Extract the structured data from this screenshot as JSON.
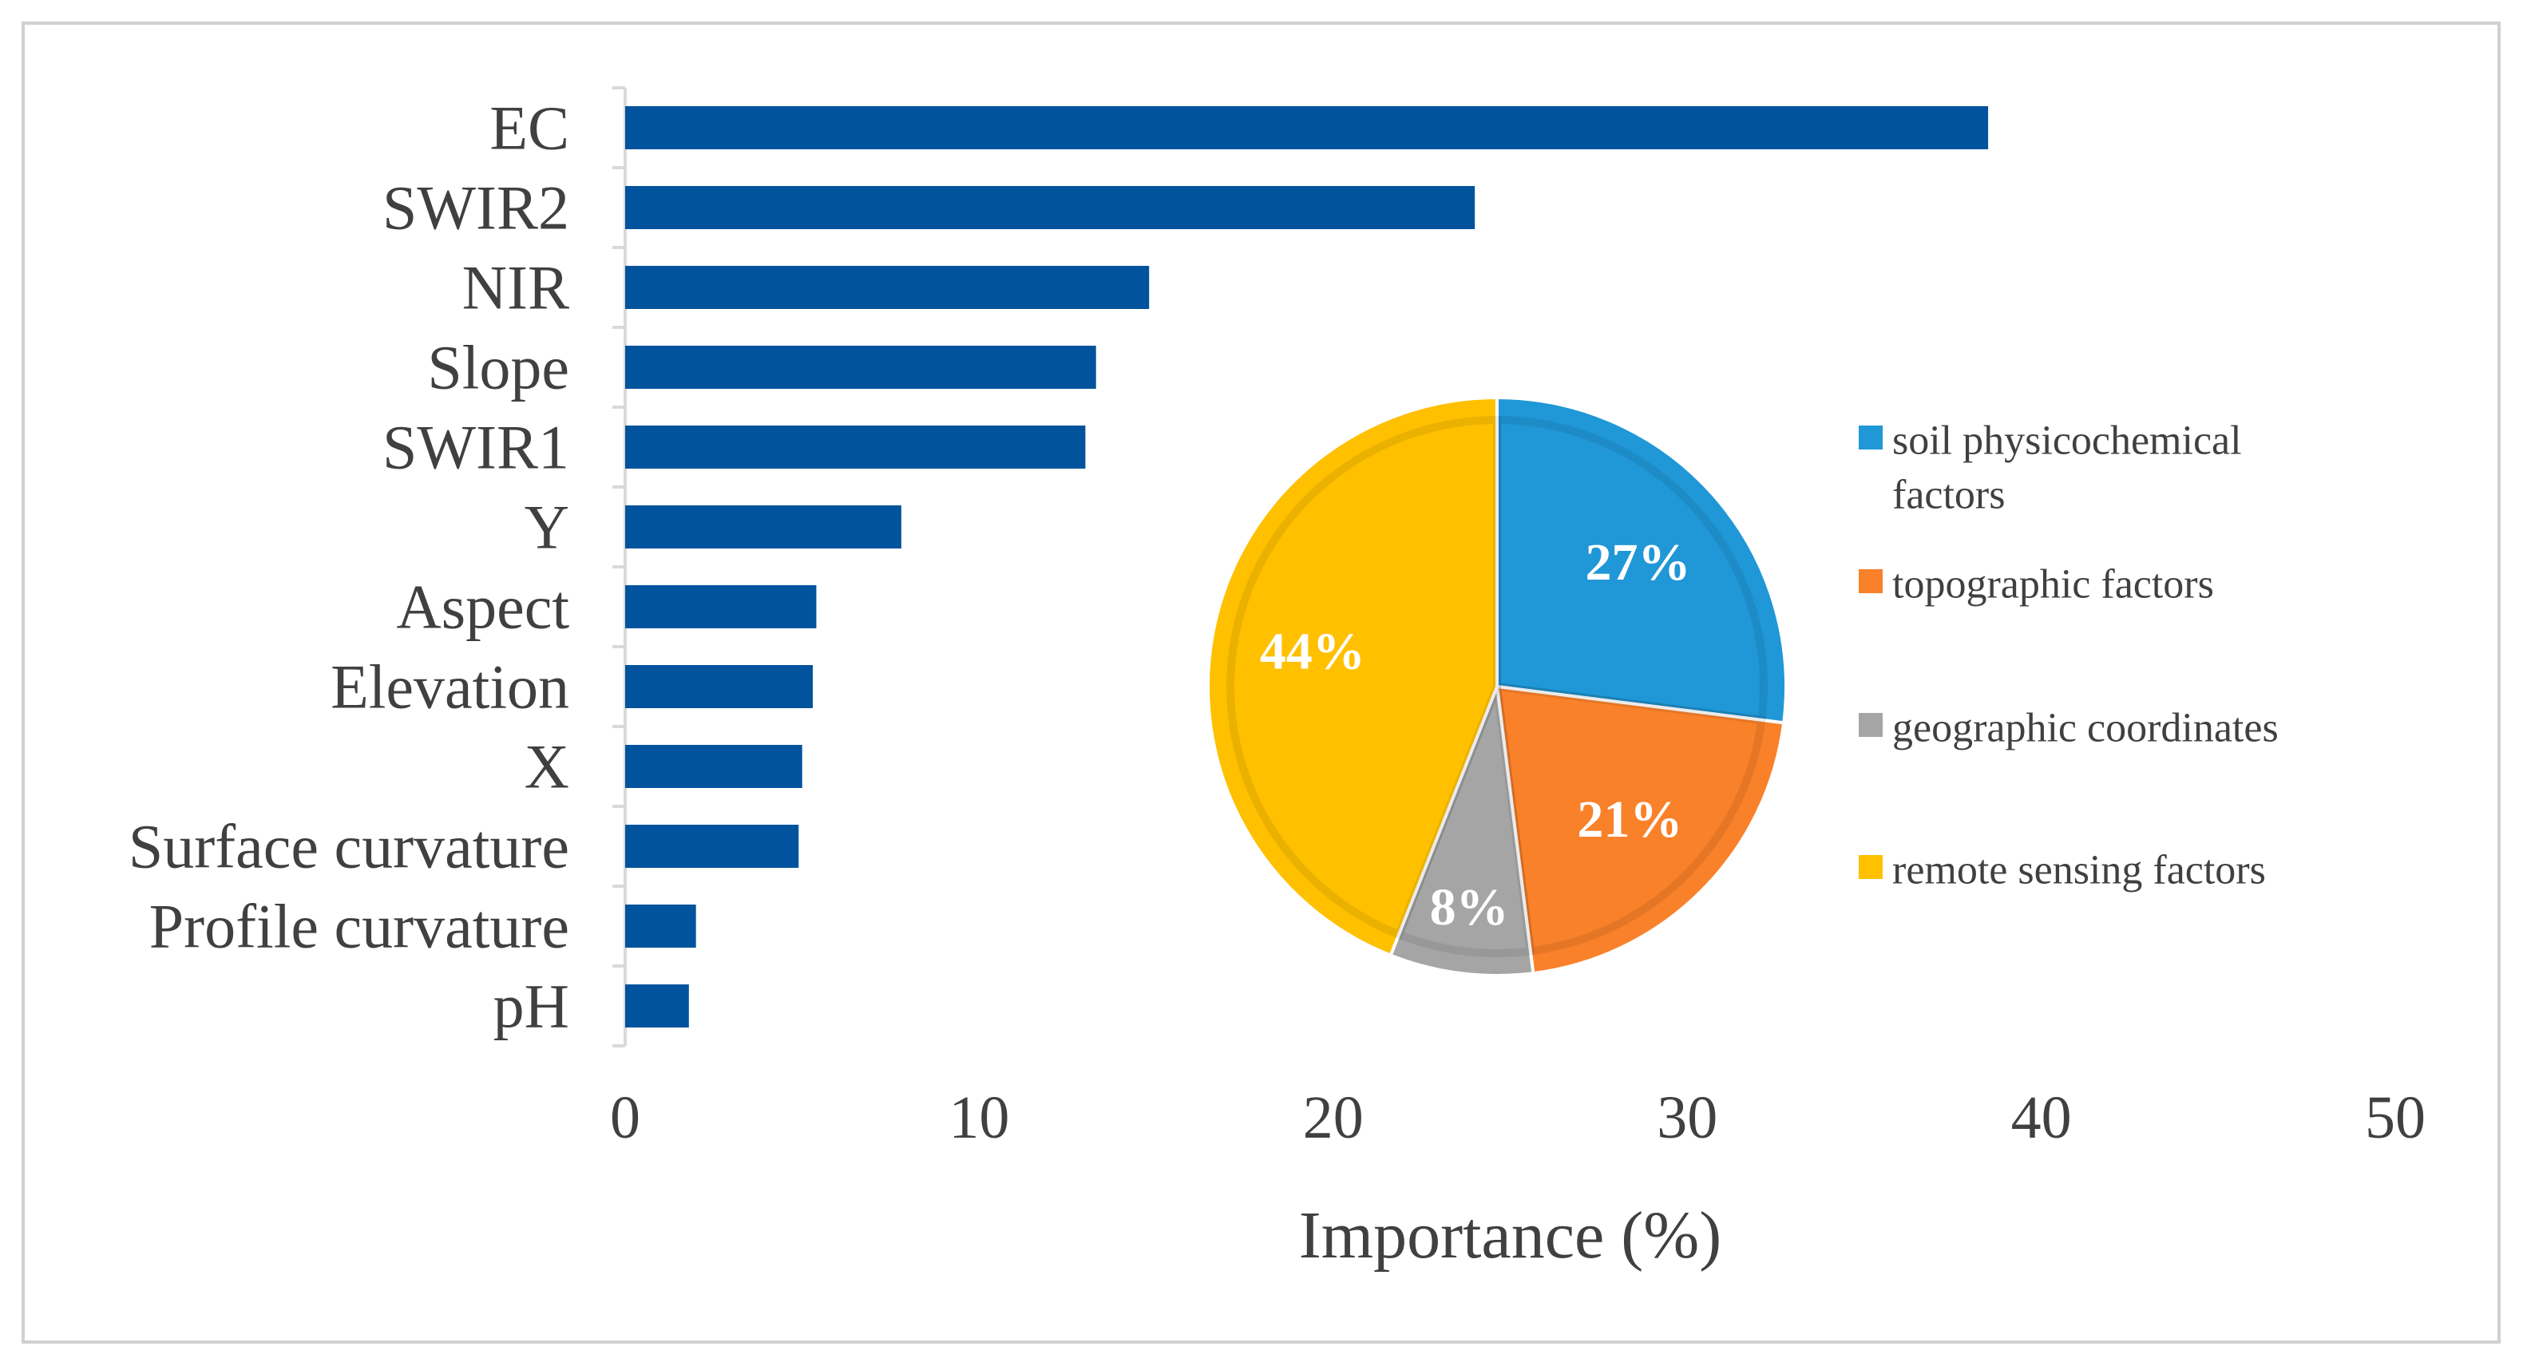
{
  "chart_data": [
    {
      "type": "bar",
      "orientation": "horizontal",
      "categories": [
        "EC",
        "SWIR2",
        "NIR",
        "Slope",
        "SWIR1",
        "Y",
        "Aspect",
        "Elevation",
        "X",
        "Surface curvature",
        "Profile curvature",
        "pH"
      ],
      "values": [
        38.5,
        24.0,
        14.8,
        13.3,
        13.0,
        7.8,
        5.4,
        5.3,
        5.0,
        4.9,
        2.0,
        1.8
      ],
      "xlim": [
        0,
        50
      ],
      "xticks": [
        "0",
        "10",
        "20",
        "30",
        "40",
        "50"
      ],
      "xlabel": "Importance (%)",
      "ylabel": "",
      "grid": false,
      "color": "#00539C"
    },
    {
      "type": "pie",
      "slices": [
        {
          "name": "soil physicochemical factors",
          "value": 27,
          "label": "27%",
          "color": "#2097D6"
        },
        {
          "name": "topographic factors",
          "value": 21,
          "label": "21%",
          "color": "#F9812A"
        },
        {
          "name": "geographic coordinates",
          "value": 8,
          "label": "8%",
          "color": "#A5A5A5"
        },
        {
          "name": "remote sensing factors",
          "value": 44,
          "label": "44%",
          "color": "#FFC000"
        }
      ],
      "legend": {
        "position": "right",
        "items": [
          {
            "line1": "soil physicochemical",
            "line2": "factors",
            "color": "#2097D6"
          },
          {
            "line1": "topographic factors",
            "line2": "",
            "color": "#F9812A"
          },
          {
            "line1": "geographic coordinates",
            "line2": "",
            "color": "#A5A5A5"
          },
          {
            "line1": "remote sensing factors",
            "line2": "",
            "color": "#FFC000"
          }
        ]
      }
    }
  ]
}
